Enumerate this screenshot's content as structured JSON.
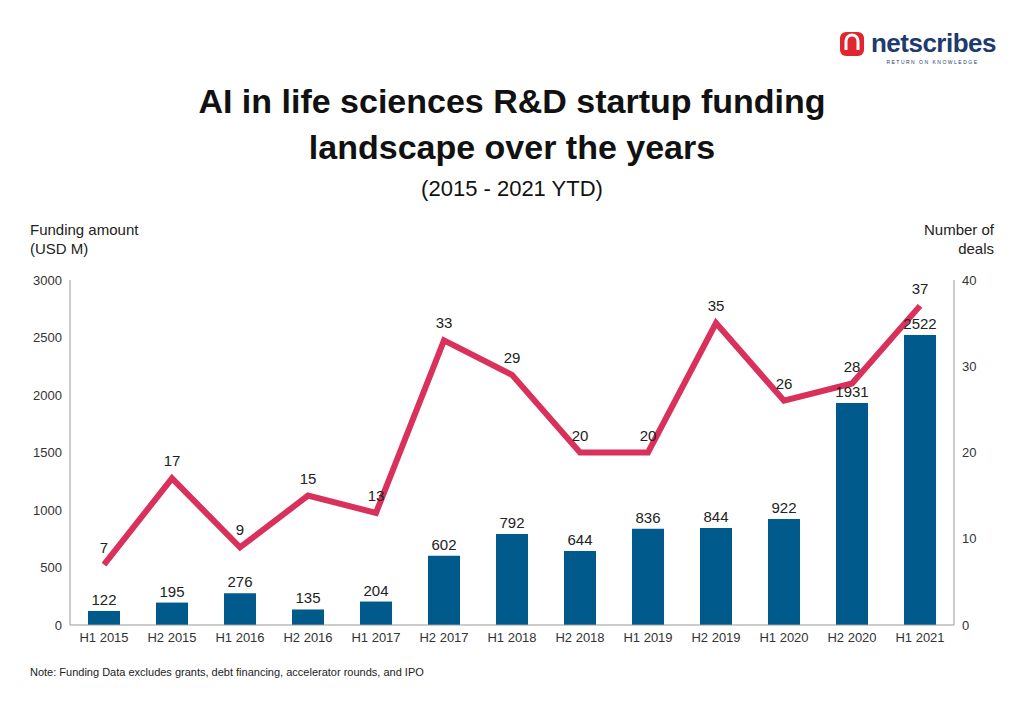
{
  "chart_data": {
    "type": "combo",
    "title": "AI in life sciences R&D startup funding landscape over the years",
    "subtitle": "(2015 - 2021 YTD)",
    "logo": "netscribes",
    "logo_tagline": "RETURN ON KNOWLEDGE",
    "note": "Note: Funding Data excludes grants, debt financing, accelerator rounds, and IPO",
    "categories": [
      "H1 2015",
      "H2 2015",
      "H1 2016",
      "H2 2016",
      "H1 2017",
      "H2 2017",
      "H1 2018",
      "H2 2018",
      "H1 2019",
      "H2 2019",
      "H1 2020",
      "H2 2020",
      "H1 2021"
    ],
    "series": [
      {
        "name": "Funding amount (USD M)",
        "type": "bar",
        "color": "#005a8c",
        "values": [
          122,
          195,
          276,
          135,
          204,
          602,
          792,
          644,
          836,
          844,
          922,
          1931,
          2522
        ]
      },
      {
        "name": "Number of deals",
        "type": "line",
        "axis": "y2",
        "color": "#d9305c",
        "values": [
          7,
          17,
          9,
          15,
          13,
          33,
          29,
          20,
          20,
          35,
          26,
          28,
          37
        ]
      }
    ],
    "ylim": [
      0,
      3000
    ],
    "yticks": [
      0,
      500,
      1000,
      1500,
      2000,
      2500,
      3000
    ],
    "y2lim": [
      0,
      40
    ],
    "y2ticks": [
      0,
      10,
      20,
      30,
      40
    ],
    "grid": false,
    "data_labels": true
  }
}
